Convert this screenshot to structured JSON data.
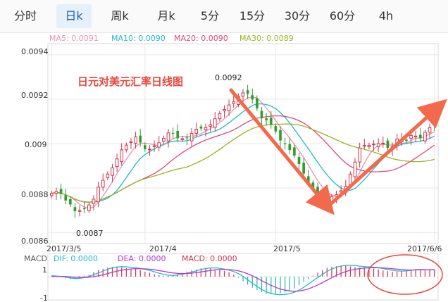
{
  "tabs": [
    {
      "label": "分时",
      "active": false
    },
    {
      "label": "日k",
      "active": true
    },
    {
      "label": "周k",
      "active": false
    },
    {
      "label": "月k",
      "active": false
    },
    {
      "label": "5分",
      "active": false
    },
    {
      "label": "15分",
      "active": false
    },
    {
      "label": "30分",
      "active": false
    },
    {
      "label": "60分",
      "active": false
    },
    {
      "label": "4h",
      "active": false
    }
  ],
  "ma_legend": [
    {
      "text": "MA5: 0.0091",
      "color": "#f08fb4"
    },
    {
      "text": "MA10: 0.0090",
      "color": "#1eb9d1"
    },
    {
      "text": "MA20: 0.0090",
      "color": "#e0457b"
    },
    {
      "text": "MA30: 0.0089",
      "color": "#9ab31e"
    }
  ],
  "macd_legend": [
    {
      "text": "MACD",
      "color": "#555555"
    },
    {
      "text": "DIF: 0.0000",
      "color": "#1eb9d1"
    },
    {
      "text": "DEA: 0.0000",
      "color": "#b838c9"
    },
    {
      "text": "MACD: 0.0000",
      "color": "#d0334a"
    }
  ],
  "chart_data": {
    "type": "candlestick",
    "annotation_title": "日元对美元汇率日线图",
    "y_ticks": [
      "0.0094",
      "0.0092",
      "0.009",
      "0.0088",
      "0.0086"
    ],
    "x_ticks": [
      "2017/3/5",
      "2017/4",
      "2017/5",
      "2017/6/6"
    ],
    "ylim": [
      0.00855,
      0.00945
    ],
    "high_label": "0.0092",
    "low_label": "0.0087",
    "macd_y_ticks": [
      "1",
      "-1"
    ],
    "macd_ylim": [
      -1.1,
      1.1
    ],
    "colors": {
      "up": "#d0334a",
      "down": "#2e9e2e",
      "arrow": "#f2694b",
      "grid": "#e8e8e8"
    },
    "close": [
      0.008776,
      0.008784,
      0.008773,
      0.008744,
      0.008726,
      0.008696,
      0.008698,
      0.008705,
      0.008724,
      0.00875,
      0.008804,
      0.008835,
      0.008863,
      0.008891,
      0.008931,
      0.008972,
      0.008993,
      0.009008,
      0.00903,
      0.009005,
      0.008975,
      0.008975,
      0.00899,
      0.009004,
      0.009024,
      0.009048,
      0.009045,
      0.009024,
      0.009022,
      0.009024,
      0.009046,
      0.009065,
      0.009068,
      0.009072,
      0.009085,
      0.009112,
      0.009135,
      0.009154,
      0.009174,
      0.009188,
      0.009214,
      0.009228,
      0.009224,
      0.009199,
      0.009159,
      0.009114,
      0.009105,
      0.009085,
      0.009055,
      0.009014,
      0.008998,
      0.008971,
      0.008946,
      0.008908,
      0.008865,
      0.008825,
      0.008794,
      0.008778,
      0.00876,
      0.008747,
      0.008762,
      0.00877,
      0.008788,
      0.008807,
      0.008863,
      0.008917,
      0.00898,
      0.008992,
      0.008992,
      0.008998,
      0.009,
      0.009002,
      0.00898,
      0.008987,
      0.009021,
      0.009018,
      0.009012,
      0.009037,
      0.009034,
      0.009024,
      0.009051,
      0.009072,
      0.00908
    ],
    "macd_hist": [
      0.05,
      0.01,
      -0.04,
      -0.1,
      -0.15,
      -0.12,
      0.03,
      0.05,
      0.1,
      0.25,
      0.37,
      0.44,
      0.5,
      0.55,
      0.54,
      0.51,
      0.47,
      0.43,
      0.45,
      0.37,
      0.28,
      0.22,
      0.15,
      0.08,
      0.03,
      0.05,
      0.1,
      0.15,
      0.2,
      0.28,
      0.35,
      0.4,
      0.46,
      0.5,
      0.48,
      0.41,
      0.38,
      0.32,
      0.25,
      0.12,
      -0.06,
      -0.26,
      -0.45,
      -0.62,
      -0.75,
      -0.86,
      -0.95,
      -0.98,
      -0.95,
      -0.93,
      -0.88,
      -0.81,
      -0.66,
      -0.48,
      -0.3,
      -0.15,
      0.05,
      0.22,
      0.36,
      0.49,
      0.54,
      0.58,
      0.62,
      0.61,
      0.57,
      0.52,
      0.5,
      0.52,
      0.5,
      0.45,
      0.41,
      0.35,
      0.3,
      0.27,
      0.28,
      0.32,
      0.35,
      0.38,
      0.4,
      0.36,
      0.34,
      0.37,
      0.41
    ]
  }
}
